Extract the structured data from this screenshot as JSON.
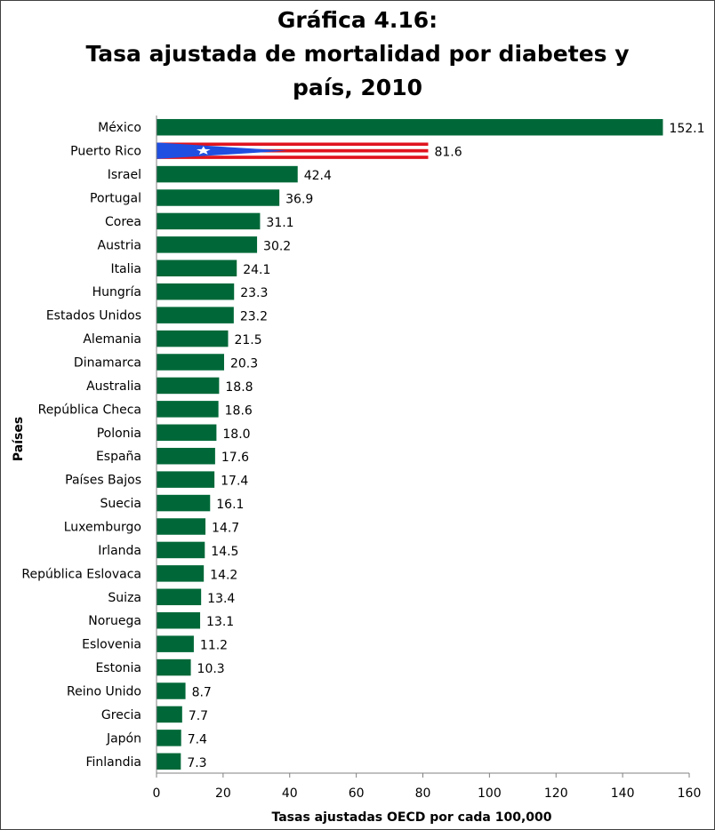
{
  "chart_data": {
    "type": "bar",
    "orientation": "horizontal",
    "title_lines": [
      "Gráfica 4.16:",
      "Tasa ajustada de mortalidad por diabetes y",
      "país, 2010"
    ],
    "xlabel": "Tasas ajustadas OECD por cada 100,000",
    "ylabel": "Países",
    "xlim": [
      0,
      160
    ],
    "xticks": [
      "0",
      "20",
      "40",
      "60",
      "80",
      "100",
      "120",
      "140",
      "160"
    ],
    "grid": false,
    "bar_color": "#006838",
    "highlight": {
      "category": "Puerto Rico",
      "style": "puerto-rico-flag"
    },
    "categories": [
      "México",
      "Puerto Rico",
      "Israel",
      "Portugal",
      "Corea",
      "Austria",
      "Italia",
      "Hungría",
      "Estados Unidos",
      "Alemania",
      "Dinamarca",
      "Australia",
      "República Checa",
      "Polonia",
      "España",
      "Países Bajos",
      "Suecia",
      "Luxemburgo",
      "Irlanda",
      "República Eslovaca",
      "Suiza",
      "Noruega",
      "Eslovenia",
      "Estonia",
      "Reino Unido",
      "Grecia",
      "Japón",
      "Finlandia"
    ],
    "values": [
      152.1,
      81.6,
      42.4,
      36.9,
      31.1,
      30.2,
      24.1,
      23.3,
      23.2,
      21.5,
      20.3,
      18.8,
      18.6,
      18.0,
      17.6,
      17.4,
      16.1,
      14.7,
      14.5,
      14.2,
      13.4,
      13.1,
      11.2,
      10.3,
      8.7,
      7.7,
      7.4,
      7.3
    ],
    "value_labels": [
      "152.1",
      "81.6",
      "42.4",
      "36.9",
      "31.1",
      "30.2",
      "24.1",
      "23.3",
      "23.2",
      "21.5",
      "20.3",
      "18.8",
      "18.6",
      "18.0",
      "17.6",
      "17.4",
      "16.1",
      "14.7",
      "14.5",
      "14.2",
      "13.4",
      "13.1",
      "11.2",
      "10.3",
      "8.7",
      "7.7",
      "7.4",
      "7.3"
    ]
  },
  "colors": {
    "bar": "#006838",
    "flag_blue": "#1f4fe0",
    "flag_red": "#e0141e",
    "flag_white": "#ffffff"
  }
}
